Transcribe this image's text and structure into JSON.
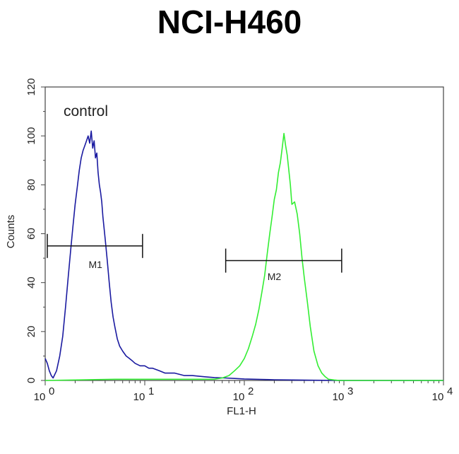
{
  "chart_data": {
    "type": "line",
    "title": "NCI-H460",
    "xlabel": "FL1-H",
    "ylabel": "Counts",
    "xscale": "log",
    "xlim": [
      1,
      10000
    ],
    "ylim": [
      0,
      120
    ],
    "x_ticks": [
      {
        "base": "10",
        "exp": "0",
        "value": 1
      },
      {
        "base": "10",
        "exp": "1",
        "value": 10
      },
      {
        "base": "10",
        "exp": "2",
        "value": 100
      },
      {
        "base": "10",
        "exp": "3",
        "value": 1000
      },
      {
        "base": "10",
        "exp": "4",
        "value": 10000
      }
    ],
    "y_ticks": [
      "0",
      "20",
      "40",
      "60",
      "80",
      "100",
      "120"
    ],
    "annotation": "control",
    "markers": [
      {
        "label": "M1",
        "x_start": 1.05,
        "x_end": 9.5,
        "y": 55,
        "label_x": 3.2,
        "label_y": 46
      },
      {
        "label": "M2",
        "x_start": 65,
        "x_end": 950,
        "y": 49,
        "label_x": 200,
        "label_y": 41
      }
    ],
    "series": [
      {
        "color": "#1a1aa0",
        "x": [
          1.0,
          1.05,
          1.1,
          1.15,
          1.2,
          1.3,
          1.4,
          1.5,
          1.6,
          1.7,
          1.8,
          1.9,
          2.0,
          2.1,
          2.2,
          2.3,
          2.4,
          2.5,
          2.6,
          2.7,
          2.8,
          2.9,
          3.0,
          3.1,
          3.2,
          3.3,
          3.4,
          3.5,
          3.6,
          3.7,
          3.8,
          4.0,
          4.2,
          4.4,
          4.6,
          4.8,
          5.0,
          5.3,
          5.6,
          6.0,
          6.5,
          7.0,
          7.5,
          8.0,
          9.0,
          10,
          11,
          12,
          14,
          16,
          20,
          25,
          30,
          40,
          50,
          65,
          80,
          100,
          150,
          200,
          300,
          500,
          1000,
          3000,
          10000
        ],
        "y": [
          9,
          7,
          4,
          2,
          1,
          4,
          10,
          18,
          30,
          42,
          53,
          63,
          72,
          79,
          86,
          91,
          94,
          96,
          98,
          100,
          97,
          102,
          95,
          98,
          91,
          93,
          85,
          80,
          77,
          73,
          67,
          58,
          49,
          40,
          32,
          26,
          22,
          17,
          14,
          12,
          10,
          9,
          8,
          7,
          6,
          6,
          5,
          5,
          4,
          3,
          3,
          2,
          2,
          1.5,
          1.2,
          1,
          0.8,
          0.6,
          0.4,
          0.3,
          0.2,
          0.1,
          0,
          0,
          0
        ]
      },
      {
        "color": "#33ee33",
        "x": [
          1,
          5,
          10,
          30,
          50,
          60,
          70,
          80,
          90,
          100,
          110,
          120,
          130,
          140,
          150,
          160,
          170,
          180,
          190,
          200,
          210,
          220,
          230,
          240,
          250,
          260,
          270,
          280,
          290,
          300,
          320,
          340,
          360,
          380,
          400,
          430,
          460,
          500,
          550,
          600,
          650,
          700,
          800,
          900,
          1000,
          2000,
          10000
        ],
        "y": [
          0,
          0.5,
          0.5,
          0.5,
          0.5,
          1,
          2,
          4,
          6,
          9,
          13,
          18,
          23,
          29,
          36,
          43,
          52,
          60,
          67,
          74,
          78,
          85,
          89,
          95,
          101,
          96,
          92,
          86,
          80,
          72,
          73,
          68,
          60,
          50,
          42,
          32,
          22,
          12,
          6,
          3,
          1.5,
          0.5,
          0.2,
          0,
          0,
          0,
          0
        ]
      }
    ],
    "grid": false
  }
}
